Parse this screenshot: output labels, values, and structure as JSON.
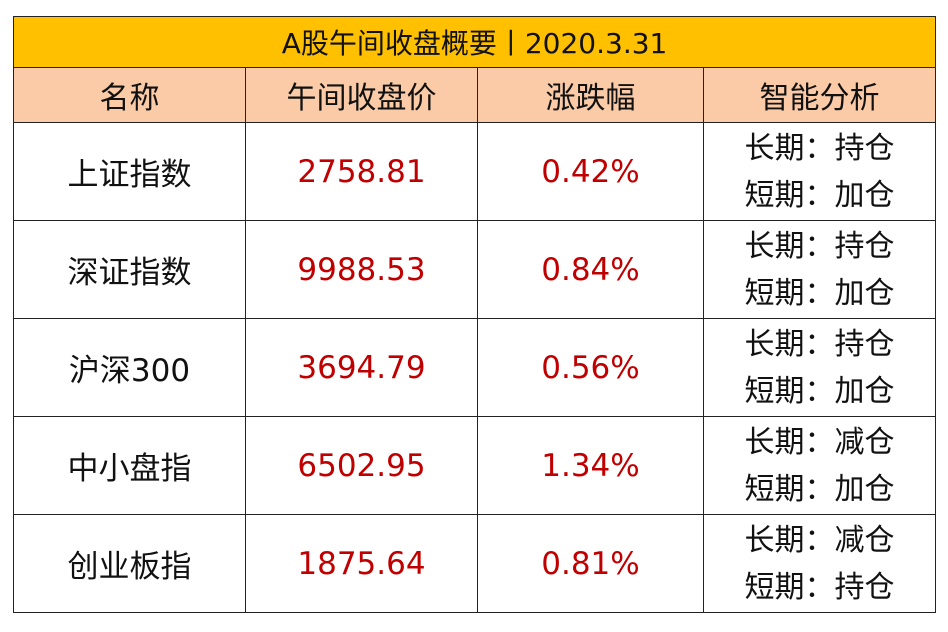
{
  "title": "A股午间收盘概要丨2020.3.31",
  "headers": [
    "名称",
    "午间收盘价",
    "涨跌幅",
    "智能分析"
  ],
  "rows": [
    {
      "name": "上证指数",
      "price": "2758.81",
      "change": "0.42%",
      "long": "长期：持仓",
      "short": "短期：加仓"
    },
    {
      "name": "深证指数",
      "price": "9988.53",
      "change": "0.84%",
      "long": "长期：持仓",
      "short": "短期：加仓"
    },
    {
      "name": "沪深300",
      "price": "3694.79",
      "change": "0.56%",
      "long": "长期：持仓",
      "short": "短期：加仓"
    },
    {
      "name": "中小盘指",
      "price": "6502.95",
      "change": "1.34%",
      "long": "长期：减仓",
      "short": "短期：加仓"
    },
    {
      "name": "创业板指",
      "price": "1875.64",
      "change": "0.81%",
      "long": "长期：减仓",
      "short": "短期：持仓"
    }
  ],
  "colors": {
    "title_bg": "#ffc000",
    "header_bg": "#fbcba7",
    "value_text": "#c00000"
  }
}
